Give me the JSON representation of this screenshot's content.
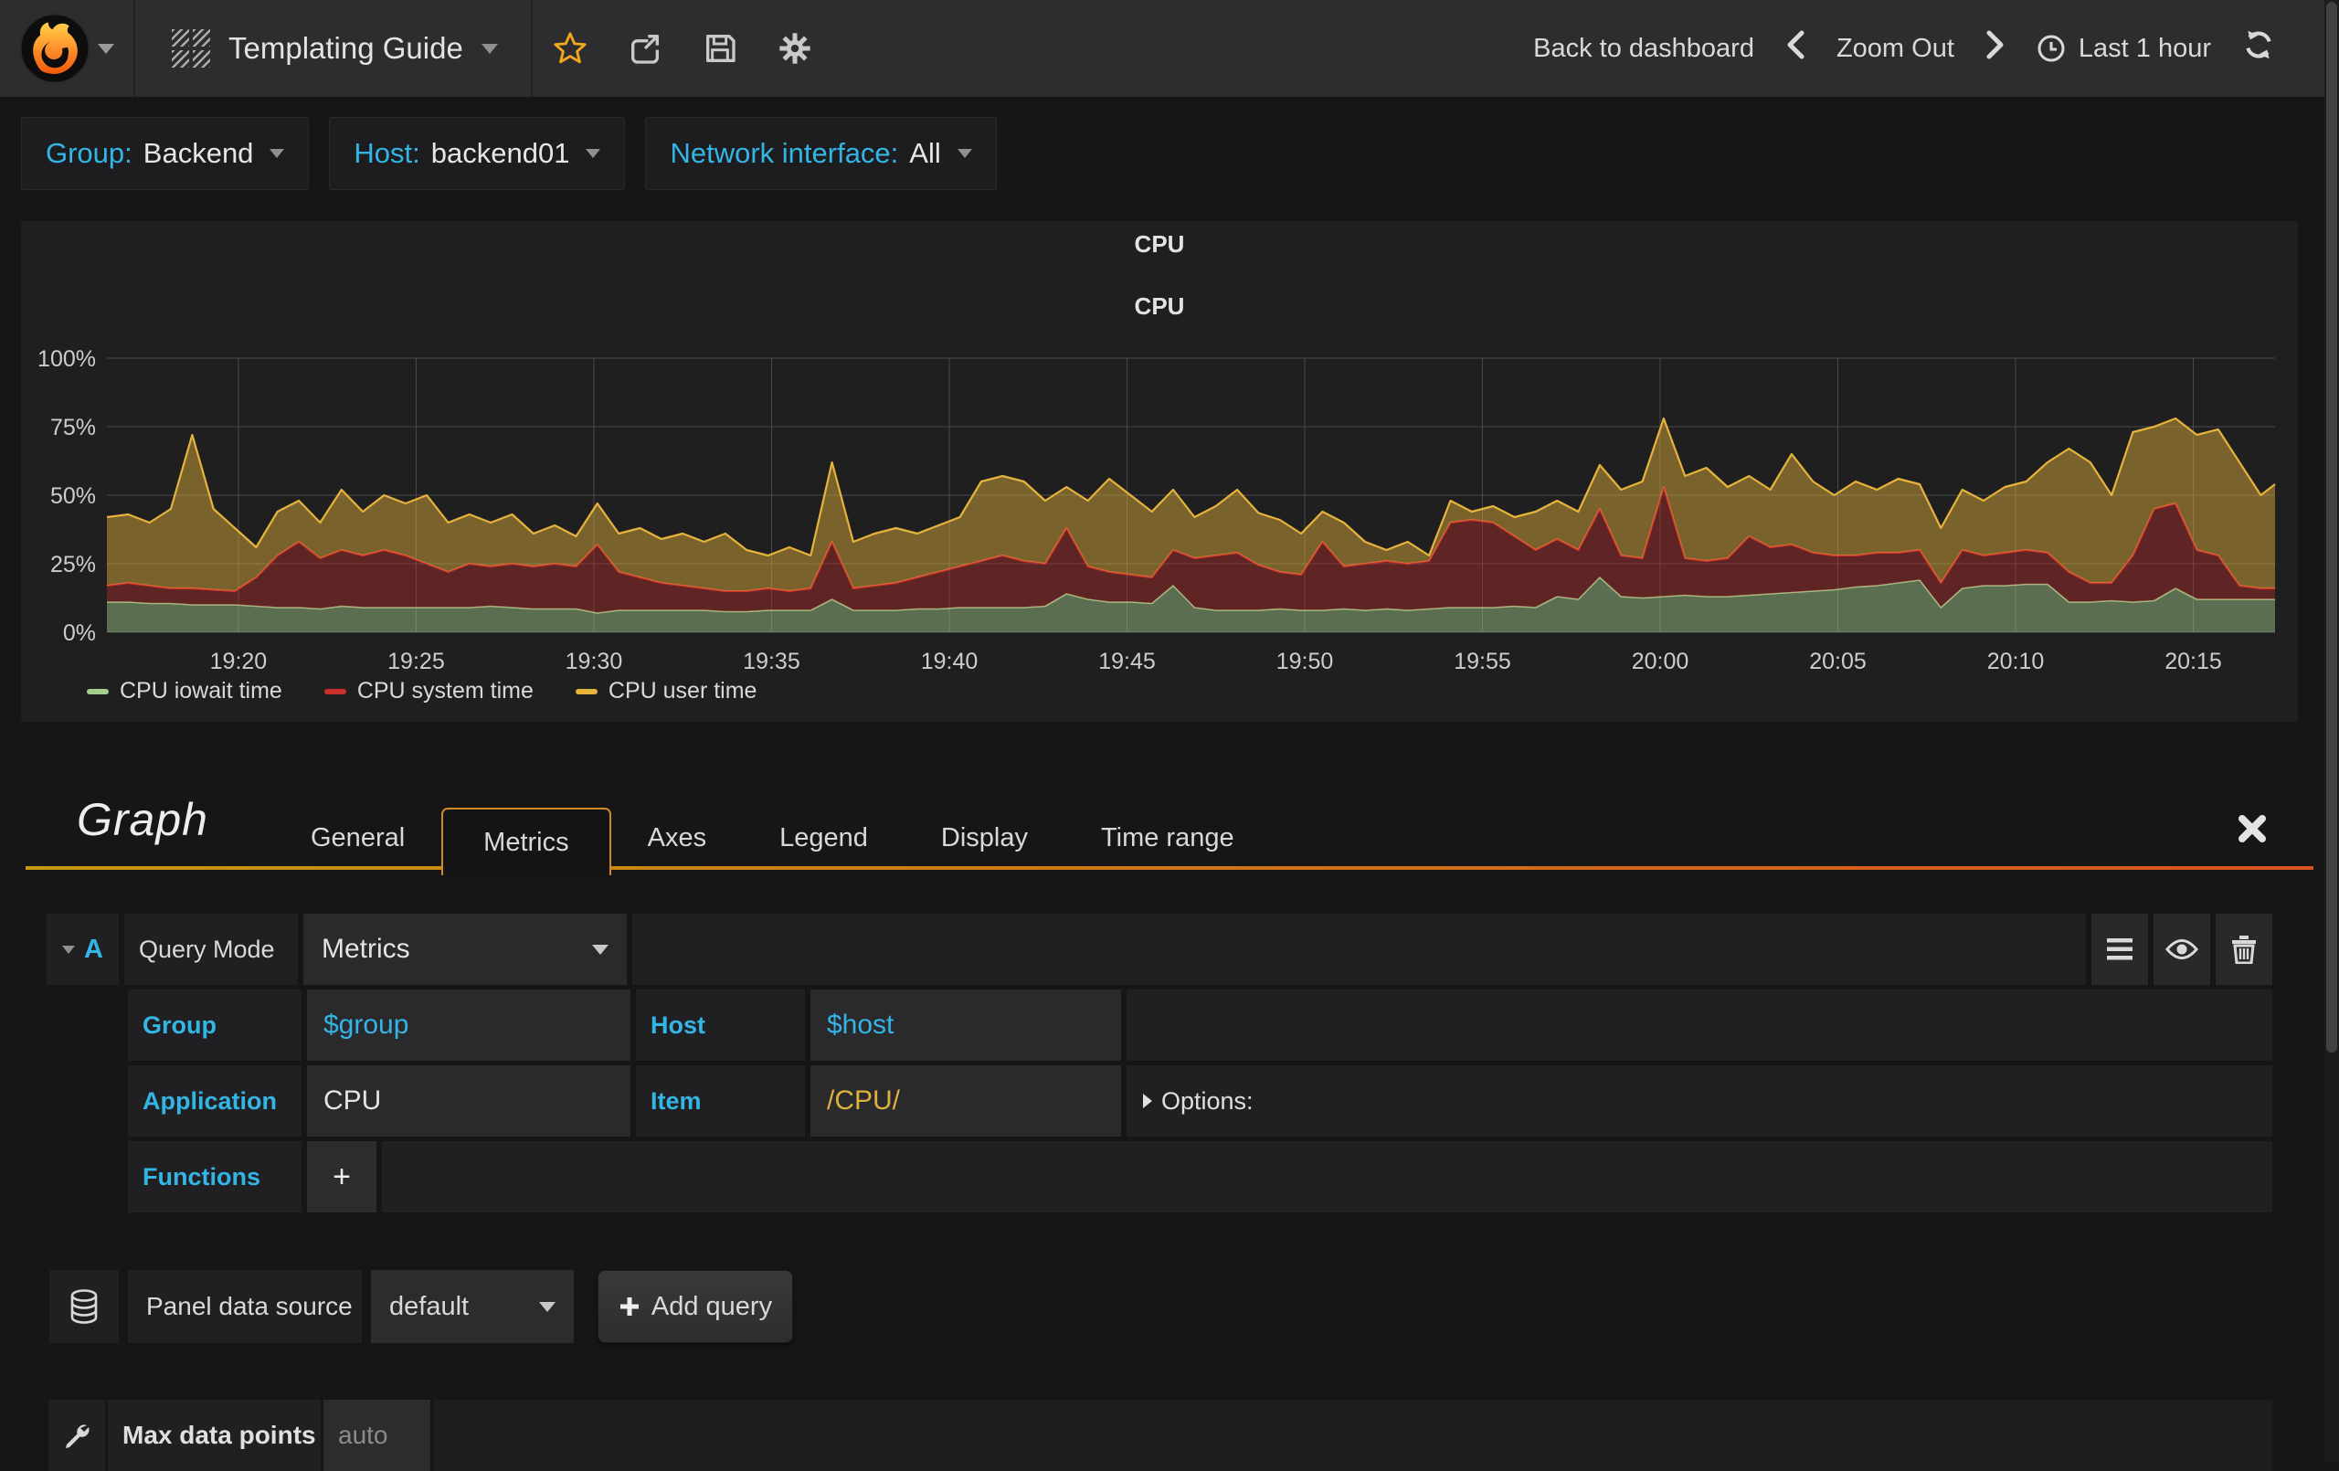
{
  "navbar": {
    "dashboard_title": "Templating Guide",
    "back_to_dashboard": "Back to dashboard",
    "zoom_out": "Zoom Out",
    "time_range": "Last 1 hour",
    "star_color": "#f2a81c"
  },
  "variables": [
    {
      "label": "Group:",
      "value": "Backend"
    },
    {
      "label": "Host:",
      "value": "backend01"
    },
    {
      "label": "Network interface:",
      "value": "All"
    }
  ],
  "panel": {
    "title": "CPU",
    "chart_title": "CPU"
  },
  "chart_data": {
    "type": "area",
    "stacked": true,
    "title": "CPU",
    "unit": "percent",
    "ylim": [
      0,
      100
    ],
    "xlim": [
      16.3,
      77.3
    ],
    "grid": true,
    "legend_position": "bottom-left",
    "yticks": [
      {
        "v": 0,
        "label": "0%"
      },
      {
        "v": 25,
        "label": "25%"
      },
      {
        "v": 50,
        "label": "50%"
      },
      {
        "v": 75,
        "label": "75%"
      },
      {
        "v": 100,
        "label": "100%"
      }
    ],
    "xticks": [
      {
        "v": 20,
        "label": "19:20"
      },
      {
        "v": 25,
        "label": "19:25"
      },
      {
        "v": 30,
        "label": "19:30"
      },
      {
        "v": 35,
        "label": "19:35"
      },
      {
        "v": 40,
        "label": "19:40"
      },
      {
        "v": 45,
        "label": "19:45"
      },
      {
        "v": 50,
        "label": "19:50"
      },
      {
        "v": 55,
        "label": "19:55"
      },
      {
        "v": 60,
        "label": "20:00"
      },
      {
        "v": 65,
        "label": "20:05"
      },
      {
        "v": 70,
        "label": "20:10"
      },
      {
        "v": 75,
        "label": "20:15"
      }
    ],
    "x_minutes_after_1900": [
      16.3,
      16.9,
      17.5,
      18.1,
      18.7,
      19.3,
      19.9,
      20.5,
      21.1,
      21.7,
      22.3,
      22.9,
      23.5,
      24.1,
      24.7,
      25.3,
      25.9,
      26.5,
      27.1,
      27.7,
      28.3,
      28.9,
      29.5,
      30.1,
      30.7,
      31.3,
      31.9,
      32.5,
      33.1,
      33.7,
      34.3,
      34.9,
      35.5,
      36.1,
      36.7,
      37.3,
      37.9,
      38.5,
      39.1,
      39.7,
      40.3,
      40.9,
      41.5,
      42.1,
      42.7,
      43.3,
      43.9,
      44.5,
      45.1,
      45.7,
      46.3,
      46.9,
      47.5,
      48.1,
      48.7,
      49.3,
      49.9,
      50.5,
      51.1,
      51.7,
      52.3,
      52.9,
      53.5,
      54.1,
      54.7,
      55.3,
      55.9,
      56.5,
      57.1,
      57.7,
      58.3,
      58.9,
      59.5,
      60.1,
      60.7,
      61.3,
      61.9,
      62.5,
      63.1,
      63.7,
      64.3,
      64.9,
      65.5,
      66.1,
      66.7,
      67.3,
      67.9,
      68.5,
      69.1,
      69.7,
      70.3,
      70.9,
      71.5,
      72.1,
      72.7,
      73.3,
      73.9,
      74.5,
      75.1,
      75.7,
      76.3,
      76.9,
      77.3
    ],
    "series": [
      {
        "name": "CPU iowait time",
        "color": "#A5CE8D",
        "values": [
          11,
          11,
          10.5,
          10.5,
          10,
          10,
          10,
          9.5,
          9,
          9,
          8.5,
          9.5,
          9,
          9,
          9,
          9,
          9,
          9,
          9.5,
          9,
          8.5,
          8.5,
          8.5,
          7,
          8,
          8,
          8,
          8,
          8,
          7.5,
          7.5,
          8,
          8,
          8,
          12,
          8,
          8,
          8,
          8.5,
          8.5,
          9,
          9,
          9,
          9,
          9.5,
          14,
          12,
          11,
          11,
          10.5,
          17,
          9,
          8,
          8,
          8,
          8.5,
          8,
          8,
          8.5,
          8,
          8.5,
          8,
          8.5,
          9,
          9,
          9,
          9.5,
          9,
          13,
          12,
          20,
          13,
          12.5,
          13,
          13.5,
          13,
          13,
          13.5,
          14,
          14.5,
          15,
          15.5,
          16.5,
          17,
          18,
          19,
          9,
          16,
          17,
          17,
          17.5,
          17.5,
          11,
          11,
          11.5,
          11,
          11.5,
          16,
          12,
          12,
          12,
          12,
          12
        ]
      },
      {
        "name": "CPU system time",
        "color": "#C9302C",
        "values": [
          6,
          7,
          6.5,
          5.5,
          6,
          5.5,
          5,
          10.5,
          19,
          24,
          18.5,
          20.5,
          19,
          21,
          19,
          16,
          13,
          16,
          14.5,
          16,
          15.5,
          16.5,
          15.5,
          25,
          14,
          12,
          10,
          9,
          8,
          7.5,
          7.5,
          8,
          7,
          8,
          21,
          8,
          9,
          10,
          11.5,
          13.5,
          15,
          17,
          19,
          17,
          15.5,
          24,
          12,
          11,
          10,
          9.5,
          13,
          18,
          20,
          21,
          16.5,
          13.5,
          13,
          25,
          15.5,
          17,
          17.5,
          17,
          17.5,
          31,
          32,
          31,
          25.5,
          21,
          21,
          18,
          25,
          15,
          14.5,
          40,
          13.5,
          13,
          14,
          21.5,
          17,
          17.5,
          14,
          12.5,
          11.5,
          12,
          11,
          11,
          9,
          14,
          11,
          12,
          12.5,
          11.5,
          11,
          7,
          6.5,
          17,
          33.5,
          31,
          18,
          16,
          5,
          4,
          4
        ]
      },
      {
        "name": "CPU user time",
        "color": "#E6B33C",
        "values": [
          25,
          25,
          23,
          29,
          56,
          29.5,
          23,
          11,
          16,
          15,
          13,
          22,
          16,
          20,
          19,
          25,
          18,
          18,
          16,
          18,
          12,
          14,
          11,
          15,
          14,
          18,
          16,
          19,
          17,
          21,
          15,
          12,
          16,
          12,
          29,
          17,
          19,
          20,
          16,
          17,
          18,
          29,
          29,
          29,
          23,
          15,
          24,
          34,
          29,
          24,
          22,
          15,
          18,
          23,
          19,
          19,
          15,
          11,
          16,
          8,
          4,
          8,
          2,
          8,
          3,
          6,
          7,
          14,
          14,
          14,
          16,
          24,
          28,
          25,
          30,
          34,
          26,
          22,
          21,
          33,
          26,
          22,
          27,
          23,
          27,
          24,
          20,
          22,
          20,
          24,
          25,
          33,
          45,
          44,
          32,
          45,
          30,
          31,
          42,
          46,
          45,
          34,
          38
        ]
      }
    ]
  },
  "editor": {
    "panel_type_title": "Graph",
    "tabs": [
      {
        "label": "General",
        "active": false
      },
      {
        "label": "Metrics",
        "active": true
      },
      {
        "label": "Axes",
        "active": false
      },
      {
        "label": "Legend",
        "active": false
      },
      {
        "label": "Display",
        "active": false
      },
      {
        "label": "Time range",
        "active": false
      }
    ],
    "query": {
      "ref_id": "A",
      "query_mode_label": "Query Mode",
      "query_mode_value": "Metrics",
      "group_label": "Group",
      "group_value": "$group",
      "host_label": "Host",
      "host_value": "$host",
      "application_label": "Application",
      "application_value": "CPU",
      "item_label": "Item",
      "item_value": "/CPU/",
      "options_label": "Options:",
      "functions_label": "Functions",
      "add_function_label": "+"
    },
    "datasource": {
      "label": "Panel data source",
      "value": "default",
      "add_query_label": "Add query"
    },
    "max_data_points": {
      "label": "Max data points",
      "placeholder": "auto"
    }
  },
  "colors": {
    "accent_blue": "#33b5e5",
    "item_regex_gold": "#deb13f",
    "tab_underline_from": "#c79810",
    "tab_underline_to": "#d9531e"
  }
}
